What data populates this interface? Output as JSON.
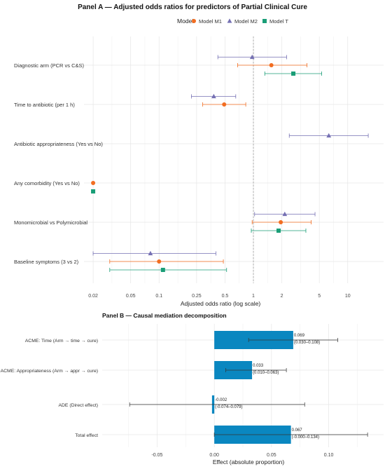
{
  "chart_data": [
    {
      "type": "forest",
      "title": "Panel A — Adjusted odds ratios for predictors of Partial Clinical Cure",
      "xlabel": "Adjusted odds ratio (log scale)",
      "ylabel": "",
      "x_scale": "log",
      "xlim": [
        0.016,
        24
      ],
      "x_ticks": [
        0.02,
        0.05,
        0.1,
        0.25,
        0.5,
        1,
        2,
        5,
        10
      ],
      "x_tick_labels": [
        "0.02",
        "0.05",
        "0.1",
        "0.25",
        "0.5",
        "1",
        "2",
        "5",
        "10"
      ],
      "reference_line": 1,
      "grid": true,
      "legend": {
        "title": "Model",
        "position": "top"
      },
      "categories": [
        "Diagnostic arm (PCR vs C&S)",
        "Time to antibiotic (per 1 h)",
        "Antibiotic appropriateness (Yes vs No)",
        "Any comorbidity (Yes vs No)",
        "Monomicrobial vs Polymicrobial",
        "Baseline symptoms (3 vs 2)"
      ],
      "series": [
        {
          "name": "Model M1",
          "color": "#f26d21",
          "marker": "circle",
          "points": [
            {
              "category": "Diagnostic arm (PCR vs C&S)",
              "or": 1.55,
              "lo": 0.68,
              "hi": 3.7
            },
            {
              "category": "Time to antibiotic (per 1 h)",
              "or": 0.49,
              "lo": 0.29,
              "hi": 0.83
            },
            {
              "category": "Any comorbidity (Yes vs No)",
              "or": 0.02,
              "lo": null,
              "hi": null
            },
            {
              "category": "Monomicrobial vs Polymicrobial",
              "or": 1.95,
              "lo": 0.97,
              "hi": 4.1
            },
            {
              "category": "Baseline symptoms (3 vs 2)",
              "or": 0.1,
              "lo": 0.03,
              "hi": 0.48
            }
          ]
        },
        {
          "name": "Model M2",
          "color": "#7570b3",
          "marker": "triangle",
          "points": [
            {
              "category": "Diagnostic arm (PCR vs C&S)",
              "or": 0.97,
              "lo": 0.42,
              "hi": 2.25
            },
            {
              "category": "Time to antibiotic (per 1 h)",
              "or": 0.38,
              "lo": 0.22,
              "hi": 0.65
            },
            {
              "category": "Antibiotic appropriateness (Yes vs No)",
              "or": 6.3,
              "lo": 2.4,
              "hi": 16.5
            },
            {
              "category": "Monomicrobial vs Polymicrobial",
              "or": 2.15,
              "lo": 1.03,
              "hi": 4.5
            },
            {
              "category": "Baseline symptoms (3 vs 2)",
              "or": 0.081,
              "lo": 0.02,
              "hi": 0.4
            }
          ]
        },
        {
          "name": "Model T",
          "color": "#1a9e77",
          "marker": "square",
          "points": [
            {
              "category": "Diagnostic arm (PCR vs C&S)",
              "or": 2.65,
              "lo": 1.32,
              "hi": 5.3
            },
            {
              "category": "Any comorbidity (Yes vs No)",
              "or": 0.02,
              "lo": null,
              "hi": null
            },
            {
              "category": "Monomicrobial vs Polymicrobial",
              "or": 1.85,
              "lo": 0.95,
              "hi": 3.6
            },
            {
              "category": "Baseline symptoms (3 vs 2)",
              "or": 0.11,
              "lo": 0.03,
              "hi": 0.52
            }
          ]
        }
      ]
    },
    {
      "type": "bar",
      "orientation": "horizontal",
      "title": "Panel B — Causal mediation decomposition",
      "xlabel": "Effect (absolute proportion)",
      "ylabel": "",
      "xlim": [
        -0.098,
        0.148
      ],
      "x_ticks": [
        -0.05,
        0,
        0.05,
        0.1
      ],
      "x_tick_labels": [
        "-0.05",
        "0.00",
        "0.05",
        "0.10"
      ],
      "grid": true,
      "bar_color": "#0a87c0",
      "categories": [
        "ACME: Time (Arm → time → cure)",
        "ACME: Appropriateness (Arm → appr → cure)",
        "ADE (Direct effect)",
        "Total effect"
      ],
      "values": [
        0.069,
        0.033,
        -0.002,
        0.067
      ],
      "ci_lower": [
        0.03,
        0.01,
        -0.074,
        -0.0
      ],
      "ci_upper": [
        0.108,
        0.063,
        0.079,
        0.134
      ],
      "value_labels": [
        "0.069",
        "0.033",
        "-0.002",
        "0.067"
      ],
      "ci_labels": [
        "(0.030–0.108)",
        "(0.010–0.063)",
        "(-0.074–0.079)",
        "(-0.000–0.134)"
      ]
    }
  ]
}
